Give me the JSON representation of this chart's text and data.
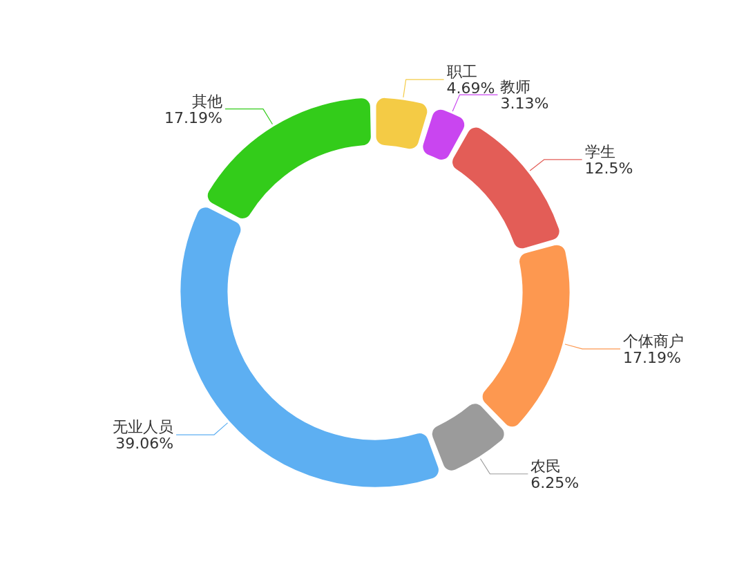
{
  "chart_data": {
    "type": "donut",
    "categories": [
      "职工",
      "教师",
      "学生",
      "个体商户",
      "农民",
      "无业人员",
      "其他"
    ],
    "values": [
      4.69,
      3.13,
      12.5,
      17.19,
      6.25,
      39.06,
      17.19
    ],
    "value_labels": [
      "4.69%",
      "3.13%",
      "12.5%",
      "17.19%",
      "6.25%",
      "39.06%",
      "17.19%"
    ],
    "colors": [
      "#f4cb45",
      "#c945f0",
      "#e35d57",
      "#fd9850",
      "#9b9b9b",
      "#5daff2",
      "#33cc1a"
    ],
    "legend": false
  }
}
